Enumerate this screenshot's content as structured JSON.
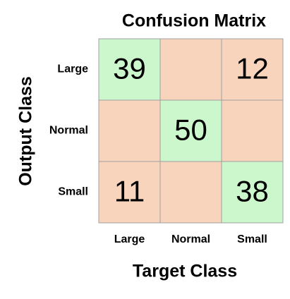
{
  "chart_data": {
    "type": "heatmap",
    "title": "Confusion Matrix",
    "x_label": "Target Class",
    "y_label": "Output Class",
    "x_categories": [
      "Large",
      "Normal",
      "Small"
    ],
    "y_categories": [
      "Large",
      "Normal",
      "Small"
    ],
    "values": [
      [
        39,
        null,
        12
      ],
      [
        null,
        50,
        null
      ],
      [
        11,
        null,
        38
      ]
    ],
    "diagonal_color": "#ccf6cc",
    "off_diagonal_color": "#f8d4bd"
  }
}
